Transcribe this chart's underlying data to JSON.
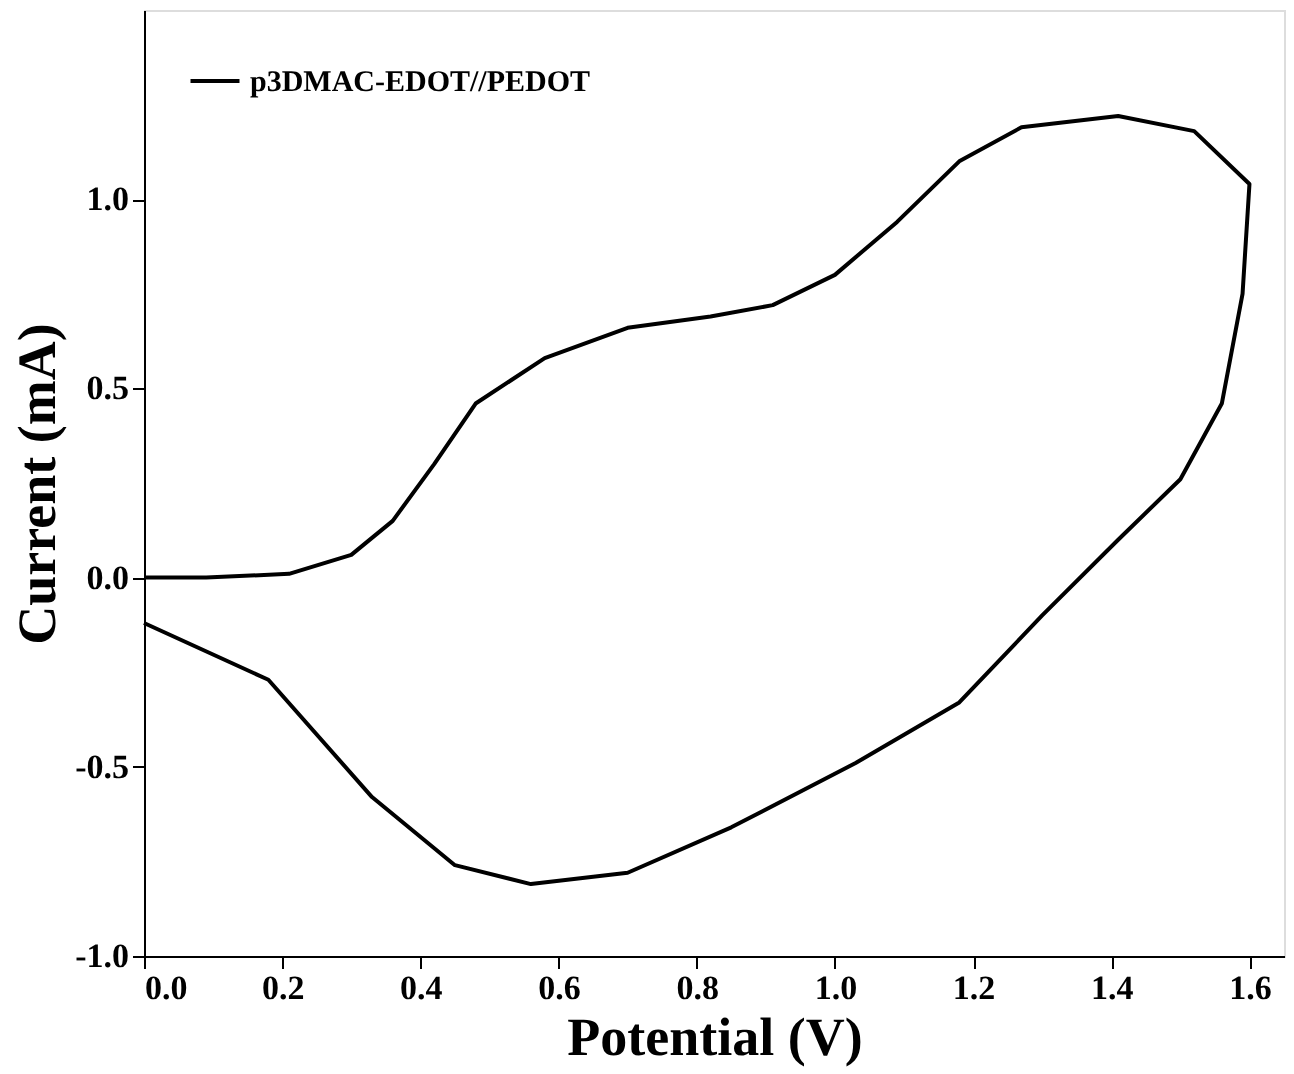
{
  "chart_data": {
    "type": "line",
    "xlabel": "Potential (V)",
    "ylabel": "Current (mA)",
    "xlim": [
      0,
      1.65
    ],
    "ylim": [
      -1.0,
      1.5
    ],
    "xticks": [
      {
        "value": 0,
        "label": "0.0"
      },
      {
        "value": 0.2,
        "label": "0.2"
      },
      {
        "value": 0.4,
        "label": "0.4"
      },
      {
        "value": 0.6,
        "label": "0.6"
      },
      {
        "value": 0.8,
        "label": "0.8"
      },
      {
        "value": 1.0,
        "label": "1.0"
      },
      {
        "value": 1.2,
        "label": "1.2"
      },
      {
        "value": 1.4,
        "label": "1.4"
      },
      {
        "value": 1.6,
        "label": "1.6"
      }
    ],
    "yticks": [
      {
        "value": -1.0,
        "label": "-1.0"
      },
      {
        "value": -0.5,
        "label": "-0.5"
      },
      {
        "value": 0,
        "label": "0.0"
      },
      {
        "value": 0.5,
        "label": "0.5"
      },
      {
        "value": 1.0,
        "label": "1.0"
      }
    ],
    "grid": false,
    "legend": "top left",
    "marker": "none",
    "line_style": "solid",
    "series": [
      {
        "name": "p3DMAC-EDOT//PEDOT",
        "color": "#000000",
        "x": [
          0,
          0.09,
          0.21,
          0.3,
          0.36,
          0.42,
          0.48,
          0.58,
          0.7,
          0.82,
          0.91,
          1.0,
          1.09,
          1.18,
          1.27,
          1.41,
          1.52,
          1.6,
          1.59,
          1.56,
          1.5,
          1.41,
          1.3,
          1.18,
          1.03,
          0.85,
          0.7,
          0.56,
          0.45,
          0.33,
          0.18,
          0
        ],
        "values": [
          0,
          0,
          0.01,
          0.06,
          0.15,
          0.3,
          0.46,
          0.58,
          0.66,
          0.69,
          0.72,
          0.8,
          0.94,
          1.1,
          1.19,
          1.22,
          1.18,
          1.04,
          0.75,
          0.46,
          0.26,
          0.1,
          -0.1,
          -0.33,
          -0.49,
          -0.66,
          -0.78,
          -0.81,
          -0.76,
          -0.58,
          -0.27,
          -0.12
        ]
      }
    ]
  }
}
